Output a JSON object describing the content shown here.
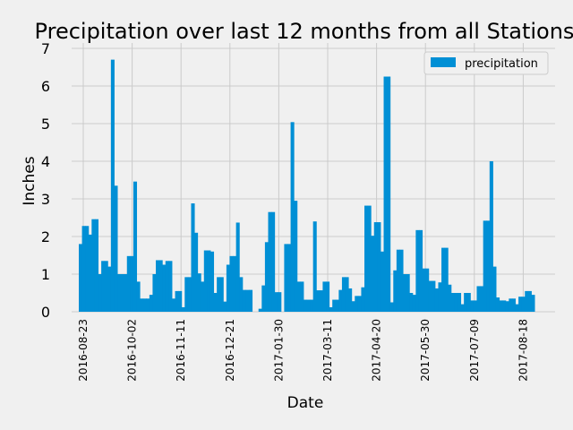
{
  "chart_data": {
    "type": "bar",
    "title": "Precipitation over last 12 months from all Stations",
    "xlabel": "Date",
    "ylabel": "Inches",
    "ylim": [
      0,
      7
    ],
    "yticks": [
      0,
      1,
      2,
      3,
      4,
      5,
      6,
      7
    ],
    "xtick_labels": [
      "2016-08-23",
      "2016-10-02",
      "2016-11-11",
      "2016-12-21",
      "2017-01-30",
      "2017-03-11",
      "2017-04-20",
      "2017-05-30",
      "2017-07-09",
      "2017-08-18"
    ],
    "grid": true,
    "legend": {
      "position": "top-right",
      "entries": [
        "precipitation"
      ]
    },
    "color": "#008fd5",
    "series": [
      {
        "name": "precipitation",
        "values": [
          1.8,
          2.28,
          2.28,
          2.05,
          2.46,
          2.46,
          1.0,
          1.35,
          1.35,
          1.2,
          6.7,
          3.35,
          1.0,
          1.0,
          1.0,
          1.48,
          1.48,
          3.46,
          0.8,
          0.35,
          0.35,
          0.35,
          0.45,
          1.0,
          1.37,
          1.37,
          1.25,
          1.35,
          1.35,
          0.35,
          0.55,
          0.55,
          0.12,
          0.92,
          0.92,
          2.88,
          2.1,
          1.02,
          0.8,
          1.63,
          1.63,
          1.6,
          0.5,
          0.92,
          0.92,
          0.27,
          1.25,
          1.48,
          1.48,
          2.37,
          0.92,
          0.58,
          0.58,
          0.58,
          0.0,
          0.0,
          0.08,
          0.7,
          1.85,
          2.65,
          2.65,
          0.52,
          0.52,
          0.0,
          1.8,
          1.8,
          5.04,
          2.95,
          0.8,
          0.8,
          0.32,
          0.32,
          0.32,
          2.4,
          0.57,
          0.57,
          0.8,
          0.8,
          0.12,
          0.32,
          0.32,
          0.58,
          0.92,
          0.92,
          0.62,
          0.28,
          0.42,
          0.42,
          0.65,
          2.82,
          2.82,
          2.02,
          2.38,
          2.38,
          1.6,
          6.25,
          6.25,
          0.25,
          1.1,
          1.65,
          1.65,
          1.0,
          1.0,
          0.5,
          0.45,
          2.17,
          2.17,
          1.15,
          1.15,
          0.82,
          0.82,
          0.62,
          0.78,
          1.7,
          1.7,
          0.72,
          0.5,
          0.5,
          0.5,
          0.2,
          0.5,
          0.5,
          0.3,
          0.3,
          0.68,
          0.68,
          2.42,
          2.42,
          4.0,
          1.2,
          0.38,
          0.3,
          0.3,
          0.28,
          0.35,
          0.35,
          0.2,
          0.4,
          0.4,
          0.55,
          0.55,
          0.45
        ]
      }
    ]
  }
}
